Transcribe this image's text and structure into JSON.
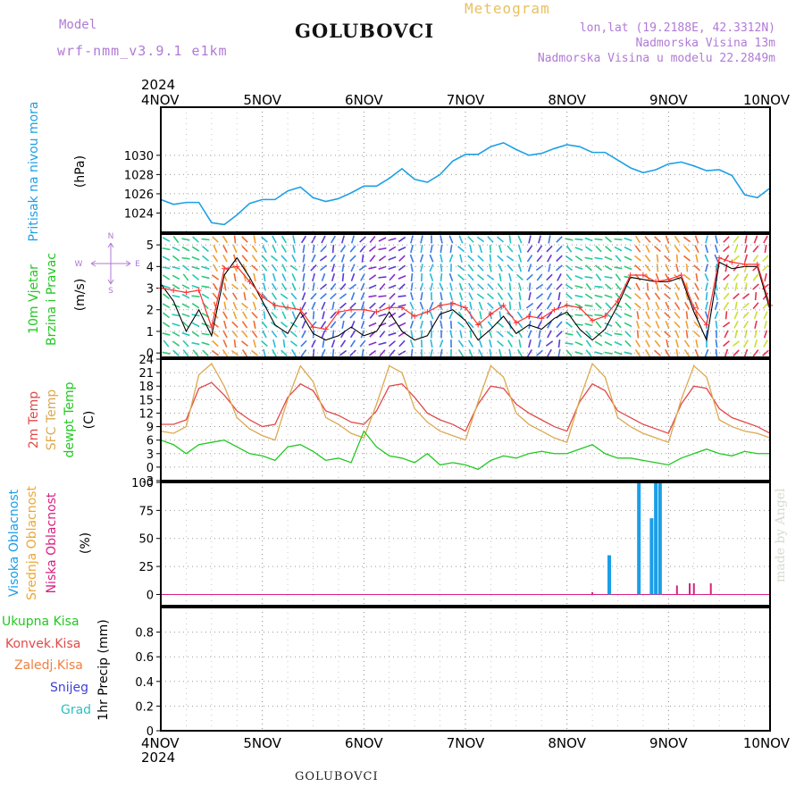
{
  "header": {
    "model_label": "Model",
    "model_name": "wrf-nmm_v3.9.1 e1km",
    "station": "GOLUBOVCI",
    "meteogram_label": "Meteogram",
    "lonlat": "lon,lat (19.2188E, 42.3312N)",
    "altitude": "Nadmorska Visina 13m",
    "model_altitude": "Nadmorska Visina u modelu 22.2849m"
  },
  "footer": {
    "station": "GOLUBOVCI",
    "watermark": "made by Angel"
  },
  "colors": {
    "pressure": "#1ea0e6",
    "wind_speed": "#000000",
    "gust": "#ff3030",
    "temp2m": "#e24848",
    "sfc_temp": "#dca850",
    "dewpt": "#22c822",
    "high_cloud": "#1a9ee8",
    "mid_cloud": "#e8a838",
    "low_cloud": "#d82080",
    "total_precip": "#22c822",
    "conv_precip": "#e24848",
    "frozen_precip": "#f08040",
    "snow": "#4040d8",
    "graupel": "#30c0c0",
    "dir_legend": "#b07ad6"
  },
  "chart_data": [
    {
      "type": "line",
      "panel": "pressure",
      "ylabel_color_lines": [
        "Pritisak na nivou mora"
      ],
      "yunit": "(hPa)",
      "ylim": [
        1022,
        1035
      ],
      "yticks": [
        1024,
        1026,
        1028,
        1030
      ],
      "x_start_label_year": "2024",
      "x_day_labels": [
        "4NOV",
        "5NOV",
        "6NOV",
        "7NOV",
        "8NOV",
        "9NOV",
        "10NOV"
      ],
      "x_day_offsets": [
        0,
        1,
        2,
        3,
        4,
        5,
        6
      ],
      "series": [
        {
          "name": "",
          "x_hours": [
            0,
            3,
            6,
            9,
            12,
            15,
            18,
            21,
            24,
            27,
            30,
            33,
            36,
            39,
            42,
            45,
            48,
            51,
            54,
            57,
            60,
            63,
            66,
            69,
            72,
            75,
            78,
            81,
            84,
            87,
            90,
            93,
            96,
            99,
            102,
            105,
            108,
            111,
            114,
            117,
            120,
            123,
            126,
            129,
            132,
            135,
            138,
            141,
            144
          ],
          "values": [
            1025.4,
            1024.9,
            1025.1,
            1025.1,
            1023.0,
            1022.8,
            1023.8,
            1025.0,
            1025.4,
            1025.4,
            1026.3,
            1026.7,
            1025.6,
            1025.2,
            1025.5,
            1026.1,
            1026.8,
            1026.8,
            1027.6,
            1028.6,
            1027.5,
            1027.2,
            1028.0,
            1029.4,
            1030.1,
            1030.1,
            1030.9,
            1031.3,
            1030.6,
            1030.0,
            1030.2,
            1030.7,
            1031.1,
            1030.9,
            1030.3,
            1030.3,
            1029.5,
            1028.7,
            1028.2,
            1028.5,
            1029.1,
            1029.3,
            1028.9,
            1028.4,
            1028.5,
            1027.9,
            1025.9,
            1025.6,
            1026.6
          ]
        }
      ]
    },
    {
      "type": "line",
      "panel": "wind",
      "ylabel_lines": [
        "10m Vjetar",
        "Brzina i Pravac"
      ],
      "yunit": "(m/s)",
      "direction_legend": [
        "N",
        "W",
        "E",
        "S"
      ],
      "ylim": [
        -0.2,
        5.5
      ],
      "yticks": [
        0,
        1,
        2,
        3,
        4,
        5
      ],
      "series": [
        {
          "name": "",
          "x_hours": [
            0,
            3,
            6,
            9,
            12,
            15,
            18,
            21,
            24,
            27,
            30,
            33,
            36,
            39,
            42,
            45,
            48,
            51,
            54,
            57,
            60,
            63,
            66,
            69,
            72,
            75,
            78,
            81,
            84,
            87,
            90,
            93,
            96,
            99,
            102,
            105,
            108,
            111,
            114,
            117,
            120,
            123,
            126,
            129,
            132,
            135,
            138,
            141,
            144
          ],
          "values": [
            3.2,
            2.4,
            1.0,
            2.0,
            0.8,
            3.6,
            4.4,
            3.5,
            2.4,
            1.3,
            0.9,
            1.9,
            0.9,
            0.6,
            0.8,
            1.2,
            0.8,
            1.0,
            1.9,
            1.0,
            0.6,
            0.8,
            1.8,
            2.0,
            1.5,
            0.6,
            1.1,
            1.7,
            0.9,
            1.3,
            1.1,
            1.6,
            1.9,
            1.1,
            0.6,
            1.1,
            2.2,
            3.5,
            3.4,
            3.3,
            3.3,
            3.5,
            1.9,
            0.6,
            4.2,
            3.9,
            4.0,
            4.0,
            2.0
          ]
        },
        {
          "name": "",
          "x_hours": [
            0,
            3,
            6,
            9,
            12,
            15,
            18,
            21,
            24,
            27,
            30,
            33,
            36,
            39,
            42,
            45,
            48,
            51,
            54,
            57,
            60,
            63,
            66,
            69,
            72,
            75,
            78,
            81,
            84,
            87,
            90,
            93,
            96,
            99,
            102,
            105,
            108,
            111,
            114,
            117,
            120,
            123,
            126,
            129,
            132,
            135,
            138,
            141,
            144
          ],
          "values": [
            3.0,
            2.9,
            2.8,
            2.9,
            1.2,
            3.9,
            4.0,
            3.3,
            2.6,
            2.2,
            2.1,
            2.0,
            1.2,
            1.1,
            1.9,
            2.0,
            2.0,
            1.9,
            2.1,
            2.1,
            1.7,
            1.9,
            2.2,
            2.3,
            2.1,
            1.3,
            1.8,
            2.2,
            1.4,
            1.7,
            1.6,
            2.0,
            2.2,
            2.1,
            1.5,
            1.7,
            2.4,
            3.6,
            3.6,
            3.3,
            3.4,
            3.6,
            2.1,
            1.3,
            4.4,
            4.2,
            4.1,
            4.1,
            2.2
          ]
        }
      ]
    },
    {
      "type": "line",
      "panel": "temperature",
      "ylabel_lines": [
        "2m Temp",
        "SFC Temp",
        "dewpt Temp"
      ],
      "yunit": "(C)",
      "ylim": [
        -3,
        24
      ],
      "yticks": [
        -3,
        0,
        3,
        6,
        9,
        12,
        15,
        18,
        21,
        24
      ],
      "series": [
        {
          "name": "",
          "x_hours": [
            0,
            3,
            6,
            9,
            12,
            15,
            18,
            21,
            24,
            27,
            30,
            33,
            36,
            39,
            42,
            45,
            48,
            51,
            54,
            57,
            60,
            63,
            66,
            69,
            72,
            75,
            78,
            81,
            84,
            87,
            90,
            93,
            96,
            99,
            102,
            105,
            108,
            111,
            114,
            117,
            120,
            123,
            126,
            129,
            132,
            135,
            138,
            141,
            144
          ],
          "values": [
            9.5,
            9.5,
            10.5,
            17.5,
            18.8,
            16.0,
            12.5,
            10.5,
            9.0,
            9.5,
            15.5,
            18.5,
            17.0,
            12.5,
            11.5,
            10.0,
            9.5,
            12.5,
            18.0,
            18.5,
            15.5,
            12.0,
            10.5,
            9.5,
            8.0,
            14.0,
            18.0,
            17.5,
            14.0,
            12.0,
            10.5,
            9.0,
            8.0,
            14.5,
            18.5,
            17.0,
            12.5,
            11.0,
            9.5,
            8.5,
            7.5,
            14.0,
            18.0,
            17.5,
            13.0,
            11.0,
            10.0,
            9.0,
            7.5
          ]
        },
        {
          "name": "",
          "x_hours": [
            0,
            3,
            6,
            9,
            12,
            15,
            18,
            21,
            24,
            27,
            30,
            33,
            36,
            39,
            42,
            45,
            48,
            51,
            54,
            57,
            60,
            63,
            66,
            69,
            72,
            75,
            78,
            81,
            84,
            87,
            90,
            93,
            96,
            99,
            102,
            105,
            108,
            111,
            114,
            117,
            120,
            123,
            126,
            129,
            132,
            135,
            138,
            141,
            144
          ],
          "values": [
            8.0,
            7.5,
            9.0,
            20.5,
            23.0,
            18.0,
            11.0,
            8.5,
            7.0,
            6.0,
            15.0,
            22.5,
            19.0,
            11.0,
            9.5,
            7.5,
            6.5,
            14.0,
            22.5,
            21.0,
            13.0,
            10.0,
            8.0,
            7.0,
            6.0,
            14.5,
            22.5,
            20.0,
            12.0,
            9.5,
            8.0,
            6.5,
            5.5,
            15.0,
            23.0,
            20.0,
            11.0,
            9.0,
            7.5,
            6.5,
            5.5,
            15.0,
            22.5,
            20.0,
            10.5,
            9.0,
            8.0,
            7.5,
            6.5
          ]
        },
        {
          "name": "",
          "x_hours": [
            0,
            3,
            6,
            9,
            12,
            15,
            18,
            21,
            24,
            27,
            30,
            33,
            36,
            39,
            42,
            45,
            48,
            51,
            54,
            57,
            60,
            63,
            66,
            69,
            72,
            75,
            78,
            81,
            84,
            87,
            90,
            93,
            96,
            99,
            102,
            105,
            108,
            111,
            114,
            117,
            120,
            123,
            126,
            129,
            132,
            135,
            138,
            141,
            144
          ],
          "values": [
            6.0,
            5.0,
            3.0,
            5.0,
            5.5,
            6.0,
            4.5,
            3.0,
            2.5,
            1.5,
            4.5,
            5.0,
            3.5,
            1.5,
            2.0,
            1.0,
            8.0,
            4.5,
            2.5,
            2.0,
            1.0,
            3.0,
            0.5,
            1.0,
            0.5,
            -0.5,
            1.5,
            2.5,
            2.0,
            3.0,
            3.5,
            3.0,
            3.0,
            4.0,
            5.0,
            3.0,
            2.0,
            2.0,
            1.5,
            1.0,
            0.5,
            2.0,
            3.0,
            4.0,
            3.0,
            2.5,
            3.5,
            3.0,
            3.0
          ]
        }
      ]
    },
    {
      "type": "bar",
      "panel": "cloud",
      "ylabel_lines": [
        "Visoka Oblacnost",
        "Srednja Oblacnost",
        "Niska  Oblacnost"
      ],
      "yunit": "(%)",
      "ylim": [
        -10,
        100
      ],
      "yticks": [
        0,
        25,
        50,
        75,
        100
      ],
      "series": [
        {
          "name": "",
          "x_hours": [
            106,
            113,
            116,
            117,
            118
          ],
          "values": [
            35,
            100,
            68,
            100,
            100
          ]
        },
        {
          "name": "",
          "x_hours": [
            102,
            122,
            125,
            126,
            130
          ],
          "values": [
            2,
            8,
            10,
            10,
            10
          ]
        }
      ]
    },
    {
      "type": "line",
      "panel": "precip",
      "ylabel_lines": [
        "Ukupna  Kisa",
        "Konvek.Kisa",
        "Zaledj.Kisa",
        "Snijeg",
        "Grad"
      ],
      "yunit": "1hr Precip (mm)",
      "ylim": [
        0,
        1.0
      ],
      "yticks": [
        0,
        0.2,
        0.4,
        0.6,
        0.8
      ],
      "series": []
    }
  ]
}
